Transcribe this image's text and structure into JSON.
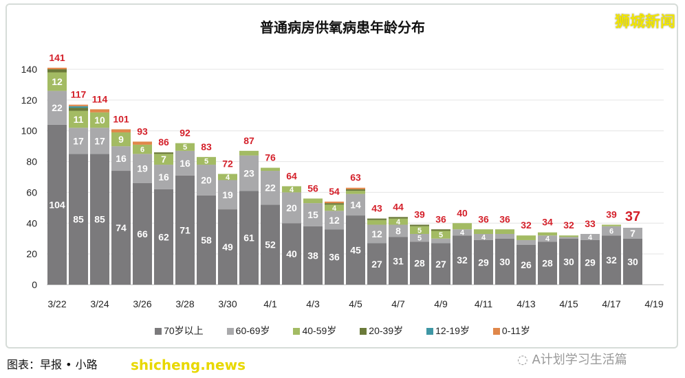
{
  "chart_data": {
    "type": "bar",
    "stacked": true,
    "title": "普通病房供氧病患年龄分布",
    "categories": [
      "3/22",
      "3/23",
      "3/24",
      "3/25",
      "3/26",
      "3/27",
      "3/28",
      "3/29",
      "3/30",
      "3/31",
      "4/1",
      "4/2",
      "4/3",
      "4/4",
      "4/5",
      "4/6",
      "4/7",
      "4/8",
      "4/9",
      "4/10",
      "4/11",
      "4/12",
      "4/13",
      "4/14",
      "4/15",
      "4/16",
      "4/17",
      "4/18"
    ],
    "x_tick_labels": [
      "3/22",
      "3/24",
      "3/26",
      "3/28",
      "3/30",
      "4/1",
      "4/3",
      "4/5",
      "4/7",
      "4/9",
      "4/11",
      "4/13",
      "4/15",
      "4/17",
      "4/19"
    ],
    "ylim": [
      0,
      140
    ],
    "y_ticks": [
      0,
      20,
      40,
      60,
      80,
      100,
      120,
      140
    ],
    "grid": true,
    "legend_position": "bottom",
    "series": [
      {
        "name": "70岁以上",
        "color": "#7b7a7c",
        "values": [
          104,
          85,
          85,
          74,
          66,
          62,
          71,
          58,
          49,
          61,
          52,
          40,
          38,
          36,
          45,
          27,
          31,
          28,
          27,
          32,
          29,
          30,
          26,
          28,
          30,
          29,
          32,
          30
        ]
      },
      {
        "name": "60-69岁",
        "color": "#a9a9ab",
        "values": [
          22,
          17,
          17,
          16,
          19,
          16,
          16,
          20,
          19,
          23,
          22,
          20,
          15,
          12,
          14,
          12,
          8,
          5,
          3,
          4,
          4,
          3,
          3,
          4,
          1,
          4,
          6,
          7
        ]
      },
      {
        "name": "40-59岁",
        "color": "#a3bb63",
        "values": [
          12,
          11,
          10,
          9,
          6,
          7,
          5,
          5,
          4,
          3,
          2,
          4,
          3,
          4,
          2,
          3,
          4,
          5,
          5,
          4,
          3,
          3,
          3,
          2,
          1,
          0,
          1,
          0
        ]
      },
      {
        "name": "20-39岁",
        "color": "#6b7a3a",
        "values": [
          2,
          2,
          0,
          0,
          0,
          1,
          0,
          0,
          0,
          0,
          0,
          0,
          0,
          1,
          1,
          1,
          1,
          1,
          1,
          0,
          0,
          0,
          0,
          0,
          0,
          0,
          0,
          0
        ]
      },
      {
        "name": "12-19岁",
        "color": "#3f97a5",
        "values": [
          0,
          1,
          0,
          0,
          0,
          0,
          0,
          0,
          0,
          0,
          0,
          0,
          0,
          0,
          0,
          0,
          0,
          0,
          0,
          0,
          0,
          0,
          0,
          0,
          0,
          0,
          0,
          0
        ]
      },
      {
        "name": "0-11岁",
        "color": "#e0874a",
        "values": [
          1,
          1,
          2,
          2,
          2,
          0,
          0,
          0,
          0,
          0,
          0,
          0,
          0,
          1,
          1,
          0,
          0,
          0,
          0,
          0,
          0,
          0,
          0,
          0,
          0,
          0,
          0,
          0
        ]
      }
    ],
    "totals": [
      141,
      117,
      114,
      101,
      93,
      86,
      92,
      83,
      72,
      87,
      76,
      64,
      56,
      54,
      63,
      43,
      44,
      39,
      36,
      40,
      36,
      36,
      32,
      34,
      32,
      33,
      39,
      37
    ],
    "total_label_color": "#d4202a"
  },
  "brand_watermark": "狮城新闻",
  "source": "图表：早报 • 小路",
  "site_watermark": "shicheng.news",
  "wechat_watermark": "A计划学习生活篇"
}
